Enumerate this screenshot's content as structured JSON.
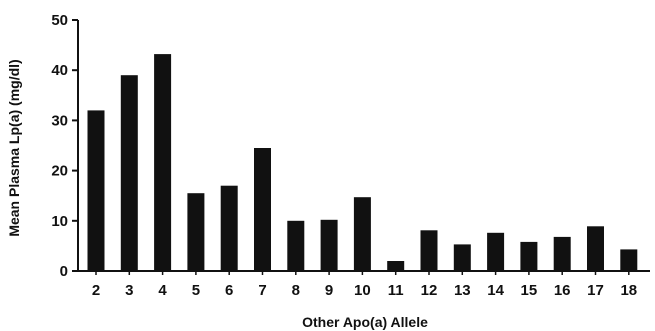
{
  "chart_data": {
    "type": "bar",
    "title": "",
    "xlabel": "Other Apo(a) Allele",
    "ylabel": "Mean Plasma Lp(a) (mg/dl)",
    "categories": [
      "2",
      "3",
      "4",
      "5",
      "6",
      "7",
      "8",
      "9",
      "10",
      "11",
      "12",
      "13",
      "14",
      "15",
      "16",
      "17",
      "18"
    ],
    "values": [
      32,
      39,
      43.2,
      15.5,
      17,
      24.5,
      10,
      10.2,
      14.7,
      2,
      8.1,
      5.3,
      7.6,
      5.8,
      6.8,
      8.9,
      4.3
    ],
    "ylim": [
      0,
      50
    ],
    "yticks": [
      "0",
      "10",
      "20",
      "30",
      "40",
      "50"
    ],
    "bar_color": "#111111",
    "grid": false,
    "legend": "none"
  }
}
